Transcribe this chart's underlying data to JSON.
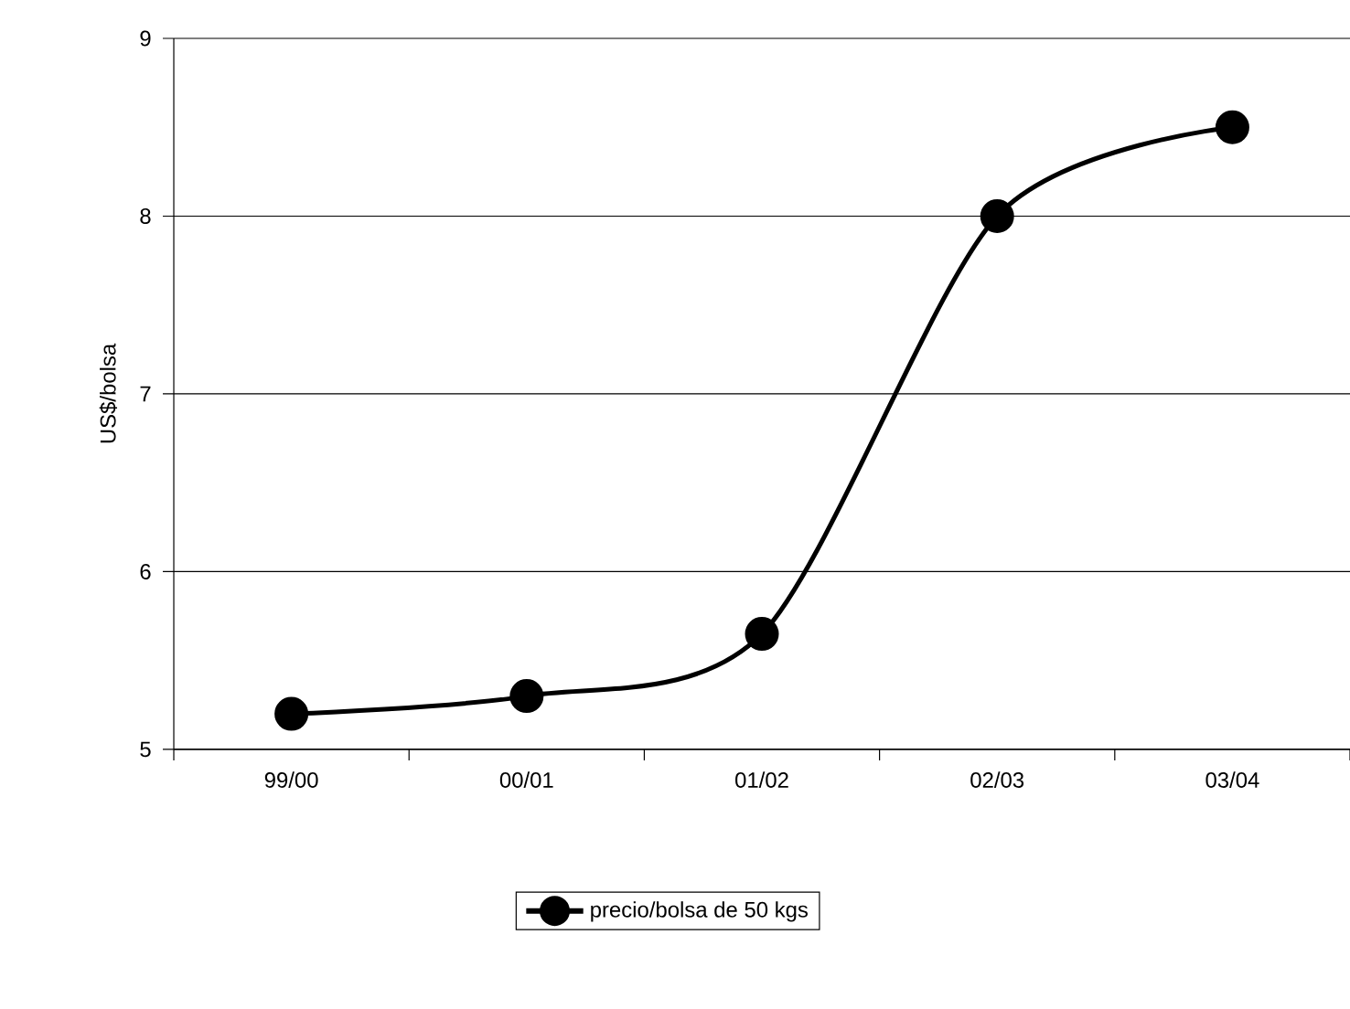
{
  "chart_data": {
    "type": "line",
    "ylabel": "US$/bolsa",
    "categories": [
      "99/00",
      "00/01",
      "01/02",
      "02/03",
      "03/04"
    ],
    "series": [
      {
        "name": "precio/bolsa de 50 kgs",
        "color": "#000000",
        "values": [
          5.2,
          5.3,
          5.65,
          8.0,
          8.5
        ]
      }
    ],
    "ylim": [
      5,
      9
    ],
    "yticks": [
      5,
      6,
      7,
      8,
      9
    ],
    "grid": "y",
    "legend": "bottom",
    "marker": "circle",
    "line_style": "solid"
  }
}
